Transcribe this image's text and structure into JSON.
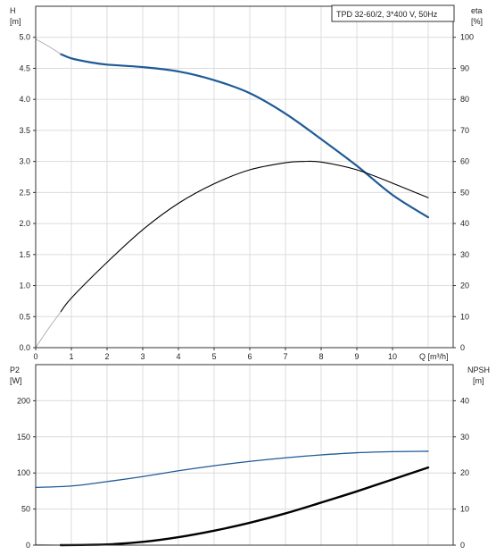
{
  "chart_data": [
    {
      "type": "line",
      "title": "TPD 32-60/2, 3*400 V, 50Hz",
      "xlabel": "Q [m³/h]",
      "ylabel_left": {
        "name": "H",
        "unit": "[m]"
      },
      "ylabel_right": {
        "name": "eta",
        "unit": "[%]"
      },
      "xlim": [
        0,
        11.7
      ],
      "ylim_left": [
        0,
        5.5
      ],
      "ylim_right": [
        0,
        110
      ],
      "x_ticks": [
        "0",
        "1",
        "2",
        "3",
        "4",
        "5",
        "6",
        "7",
        "8",
        "9",
        "10"
      ],
      "y_ticks_left": [
        "0.0",
        "0.5",
        "1.0",
        "1.5",
        "2.0",
        "2.5",
        "3.0",
        "3.5",
        "4.0",
        "4.5",
        "5.0"
      ],
      "y_ticks_right": [
        "0",
        "10",
        "20",
        "30",
        "40",
        "50",
        "60",
        "70",
        "80",
        "90",
        "100"
      ],
      "grid": true,
      "series": [
        {
          "axis": "left",
          "color": "#1f5a96",
          "width": 2.2,
          "points": [
            [
              0.7,
              4.73
            ],
            [
              1,
              4.66
            ],
            [
              1.5,
              4.6
            ],
            [
              2,
              4.56
            ],
            [
              3,
              4.52
            ],
            [
              4,
              4.45
            ],
            [
              5,
              4.31
            ],
            [
              6,
              4.1
            ],
            [
              7,
              3.77
            ],
            [
              8,
              3.36
            ],
            [
              9,
              2.93
            ],
            [
              10,
              2.46
            ],
            [
              11,
              2.1
            ]
          ]
        },
        {
          "axis": "left",
          "color": "#aaaaaa",
          "width": 0.9,
          "points": [
            [
              0,
              4.97
            ],
            [
              0.35,
              4.86
            ],
            [
              0.7,
              4.73
            ]
          ]
        },
        {
          "axis": "right",
          "color": "#000000",
          "width": 1.1,
          "points": [
            [
              0.7,
              11.5
            ],
            [
              1,
              16
            ],
            [
              2,
              27.5
            ],
            [
              3,
              38
            ],
            [
              4,
              46.5
            ],
            [
              5,
              52.8
            ],
            [
              6,
              57.3
            ],
            [
              7,
              59.6
            ],
            [
              7.5,
              60
            ],
            [
              8,
              59.8
            ],
            [
              9,
              57.3
            ],
            [
              10,
              53
            ],
            [
              11,
              48.3
            ]
          ]
        },
        {
          "axis": "right",
          "color": "#aaaaaa",
          "width": 0.9,
          "points": [
            [
              0,
              0
            ],
            [
              0.35,
              6
            ],
            [
              0.7,
              11.5
            ]
          ]
        }
      ]
    },
    {
      "type": "line",
      "xlabel": "",
      "ylabel_left": {
        "name": "P2",
        "unit": "[W]"
      },
      "ylabel_right": {
        "name": "NPSH",
        "unit": "[m]"
      },
      "xlim": [
        0,
        11.7
      ],
      "ylim_left": [
        0,
        250
      ],
      "ylim_right": [
        0,
        50
      ],
      "y_ticks_left": [
        "0",
        "50",
        "100",
        "150",
        "200"
      ],
      "y_ticks_right": [
        "0",
        "10",
        "20",
        "30",
        "40"
      ],
      "grid": true,
      "series": [
        {
          "axis": "left",
          "color": "#1f5a96",
          "width": 1.3,
          "points": [
            [
              0,
              80
            ],
            [
              1,
              82
            ],
            [
              2,
              88
            ],
            [
              3,
              95
            ],
            [
              4,
              103
            ],
            [
              5,
              110
            ],
            [
              6,
              116
            ],
            [
              7,
              121
            ],
            [
              8,
              125
            ],
            [
              9,
              128
            ],
            [
              10,
              129.5
            ],
            [
              11,
              130
            ]
          ]
        },
        {
          "axis": "right",
          "color": "#000000",
          "width": 2.4,
          "points": [
            [
              0.7,
              0
            ],
            [
              2,
              0.2
            ],
            [
              3,
              0.9
            ],
            [
              4,
              2.2
            ],
            [
              5,
              4
            ],
            [
              6,
              6.2
            ],
            [
              7,
              8.8
            ],
            [
              8,
              11.8
            ],
            [
              9,
              14.9
            ],
            [
              10,
              18.2
            ],
            [
              11,
              21.5
            ]
          ]
        },
        {
          "axis": "right",
          "color": "#aaaaaa",
          "width": 0.9,
          "points": [
            [
              0,
              0.2
            ],
            [
              0.35,
              0.1
            ],
            [
              0.7,
              0
            ]
          ]
        }
      ]
    }
  ]
}
